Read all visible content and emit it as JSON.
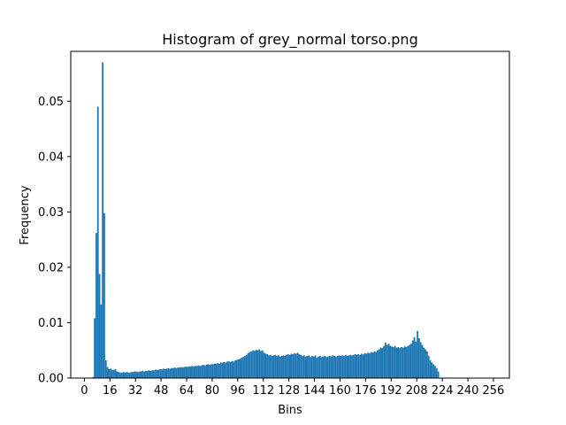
{
  "chart_data": {
    "type": "bar",
    "title": "Histogram of grey_normal torso.png",
    "xlabel": "Bins",
    "ylabel": "Frequency",
    "xlim": [
      -8.5,
      266
    ],
    "ylim": [
      0,
      0.059
    ],
    "xticks": [
      0,
      16,
      32,
      48,
      64,
      80,
      96,
      112,
      128,
      144,
      160,
      176,
      192,
      208,
      224,
      240,
      256
    ],
    "xtick_labels": [
      "0",
      "16",
      "32",
      "48",
      "64",
      "80",
      "96",
      "112",
      "128",
      "144",
      "160",
      "176",
      "192",
      "208",
      "224",
      "240",
      "256"
    ],
    "yticks": [
      0.0,
      0.01,
      0.02,
      0.03,
      0.04,
      0.05
    ],
    "ytick_labels": [
      "0.00",
      "0.01",
      "0.02",
      "0.03",
      "0.04",
      "0.05"
    ],
    "bar_color": "#1f77b4",
    "bin_width": 1,
    "bins_start": 0,
    "values": [
      0,
      0,
      0,
      0,
      0,
      0.0002,
      0.0108,
      0.0262,
      0.049,
      0.0188,
      0.0133,
      0.057,
      0.0298,
      0.0032,
      0.002,
      0.0016,
      0.0017,
      0.0015,
      0.0015,
      0.0016,
      0.0012,
      0.0011,
      0.001,
      0.001,
      0.0011,
      0.001,
      0.0011,
      0.001,
      0.001,
      0.0011,
      0.0011,
      0.0012,
      0.0012,
      0.0011,
      0.0012,
      0.0012,
      0.0013,
      0.0012,
      0.0013,
      0.0013,
      0.0014,
      0.0013,
      0.0014,
      0.0014,
      0.0015,
      0.0015,
      0.0015,
      0.0016,
      0.0016,
      0.0017,
      0.0016,
      0.0017,
      0.0018,
      0.0017,
      0.0018,
      0.0018,
      0.0019,
      0.0018,
      0.0019,
      0.0019,
      0.002,
      0.0019,
      0.002,
      0.0021,
      0.002,
      0.0021,
      0.0021,
      0.0022,
      0.0021,
      0.0022,
      0.0022,
      0.0023,
      0.0022,
      0.0023,
      0.0024,
      0.0023,
      0.0024,
      0.0025,
      0.0024,
      0.0025,
      0.0025,
      0.0026,
      0.0026,
      0.0027,
      0.0026,
      0.0028,
      0.0028,
      0.0029,
      0.0028,
      0.003,
      0.003,
      0.0029,
      0.0031,
      0.003,
      0.0032,
      0.0033,
      0.0034,
      0.0035,
      0.0037,
      0.0038,
      0.004,
      0.0042,
      0.0045,
      0.0047,
      0.0048,
      0.005,
      0.0049,
      0.0051,
      0.005,
      0.0052,
      0.0049,
      0.005,
      0.0046,
      0.0044,
      0.0043,
      0.0041,
      0.0042,
      0.004,
      0.0041,
      0.0042,
      0.004,
      0.0041,
      0.0039,
      0.004,
      0.0041,
      0.004,
      0.0042,
      0.0043,
      0.0042,
      0.0044,
      0.0043,
      0.0045,
      0.0044,
      0.0046,
      0.0043,
      0.0042,
      0.004,
      0.0041,
      0.0039,
      0.004,
      0.0041,
      0.0038,
      0.004,
      0.0039,
      0.0041,
      0.0037,
      0.0039,
      0.004,
      0.0038,
      0.0039,
      0.004,
      0.0038,
      0.0039,
      0.004,
      0.0039,
      0.0041,
      0.004,
      0.0039,
      0.004,
      0.0041,
      0.004,
      0.0041,
      0.004,
      0.0042,
      0.004,
      0.0041,
      0.0042,
      0.0041,
      0.0042,
      0.0043,
      0.0042,
      0.0043,
      0.0042,
      0.0044,
      0.0043,
      0.0045,
      0.0044,
      0.0046,
      0.0045,
      0.0047,
      0.0046,
      0.0048,
      0.0047,
      0.005,
      0.0052,
      0.0055,
      0.0054,
      0.0058,
      0.0064,
      0.006,
      0.0062,
      0.0058,
      0.0057,
      0.0056,
      0.0058,
      0.0055,
      0.0056,
      0.0054,
      0.0056,
      0.0055,
      0.0057,
      0.0056,
      0.0058,
      0.006,
      0.0062,
      0.0068,
      0.0074,
      0.0066,
      0.0085,
      0.0072,
      0.0065,
      0.006,
      0.0055,
      0.0052,
      0.0048,
      0.004,
      0.0032,
      0.0028,
      0.0025,
      0.0022,
      0.0018,
      0.0012,
      0,
      0,
      0,
      0,
      0,
      0,
      0,
      0,
      0,
      0,
      0,
      0,
      0,
      0,
      0,
      0,
      0,
      0,
      0,
      0,
      0,
      0,
      0,
      0,
      0,
      0,
      0,
      0,
      0,
      0,
      0,
      0,
      0,
      0
    ]
  }
}
